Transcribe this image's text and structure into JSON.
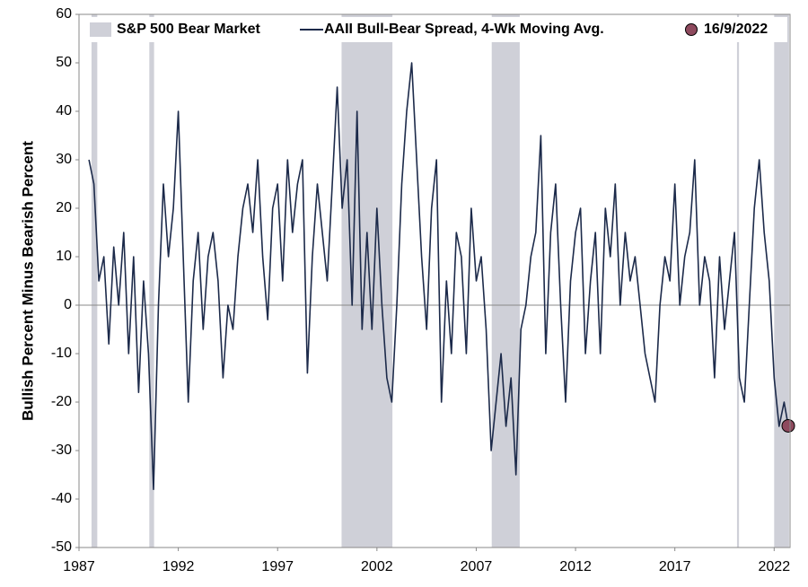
{
  "chart_data": {
    "type": "line",
    "ylabel": "Bullish Percent Minus Bearish Percent",
    "xlim": [
      1987,
      2022.8
    ],
    "xticks": [
      1987,
      1992,
      1997,
      2002,
      2007,
      2012,
      2017,
      2022
    ],
    "ylim": [
      -50,
      60
    ],
    "yticks": [
      -50,
      -40,
      -30,
      -20,
      -10,
      0,
      10,
      20,
      30,
      40,
      50,
      60
    ],
    "zero_line": true,
    "x": [
      1987.5,
      1987.75,
      1988,
      1988.25,
      1988.5,
      1988.75,
      1989,
      1989.25,
      1989.5,
      1989.75,
      1990,
      1990.25,
      1990.5,
      1990.75,
      1991,
      1991.25,
      1991.5,
      1991.75,
      1992,
      1992.25,
      1992.5,
      1992.75,
      1993,
      1993.25,
      1993.5,
      1993.75,
      1994,
      1994.25,
      1994.5,
      1994.75,
      1995,
      1995.25,
      1995.5,
      1995.75,
      1996,
      1996.25,
      1996.5,
      1996.75,
      1997,
      1997.25,
      1997.5,
      1997.75,
      1998,
      1998.25,
      1998.5,
      1998.75,
      1999,
      1999.25,
      1999.5,
      1999.75,
      2000,
      2000.25,
      2000.5,
      2000.75,
      2001,
      2001.25,
      2001.5,
      2001.75,
      2002,
      2002.25,
      2002.5,
      2002.75,
      2003,
      2003.25,
      2003.5,
      2003.75,
      2004,
      2004.25,
      2004.5,
      2004.75,
      2005,
      2005.25,
      2005.5,
      2005.75,
      2006,
      2006.25,
      2006.5,
      2006.75,
      2007,
      2007.25,
      2007.5,
      2007.75,
      2008,
      2008.25,
      2008.5,
      2008.75,
      2009,
      2009.25,
      2009.5,
      2009.75,
      2010,
      2010.25,
      2010.5,
      2010.75,
      2011,
      2011.25,
      2011.5,
      2011.75,
      2012,
      2012.25,
      2012.5,
      2012.75,
      2013,
      2013.25,
      2013.5,
      2013.75,
      2014,
      2014.25,
      2014.5,
      2014.75,
      2015,
      2015.25,
      2015.5,
      2015.75,
      2016,
      2016.25,
      2016.5,
      2016.75,
      2017,
      2017.25,
      2017.5,
      2017.75,
      2018,
      2018.25,
      2018.5,
      2018.75,
      2019,
      2019.25,
      2019.5,
      2019.75,
      2020,
      2020.25,
      2020.5,
      2020.75,
      2021,
      2021.25,
      2021.5,
      2021.75,
      2022,
      2022.25,
      2022.5,
      2022.71
    ],
    "series": [
      {
        "name": "AAII Bull-Bear Spread, 4-Wk Moving Avg.",
        "color": "#1c2a4a",
        "values": [
          30,
          25,
          5,
          10,
          -8,
          12,
          0,
          15,
          -10,
          10,
          -18,
          5,
          -10,
          -38,
          0,
          25,
          10,
          20,
          40,
          10,
          -20,
          5,
          15,
          -5,
          10,
          15,
          5,
          -15,
          0,
          -5,
          10,
          20,
          25,
          15,
          30,
          10,
          -3,
          20,
          25,
          5,
          30,
          15,
          25,
          30,
          -14,
          10,
          25,
          15,
          5,
          25,
          45,
          20,
          30,
          0,
          40,
          -5,
          15,
          -5,
          20,
          0,
          -15,
          -20,
          0,
          25,
          40,
          50,
          30,
          10,
          -5,
          20,
          30,
          -20,
          5,
          -10,
          15,
          10,
          -10,
          20,
          5,
          10,
          -5,
          -30,
          -20,
          -10,
          -25,
          -15,
          -35,
          -5,
          0,
          10,
          15,
          35,
          -10,
          15,
          25,
          0,
          -20,
          5,
          15,
          20,
          -10,
          5,
          15,
          -10,
          20,
          10,
          25,
          0,
          15,
          5,
          10,
          0,
          -10,
          -15,
          -20,
          0,
          10,
          5,
          25,
          0,
          10,
          15,
          30,
          0,
          10,
          5,
          -15,
          10,
          -5,
          5,
          15,
          -15,
          -20,
          0,
          20,
          30,
          15,
          5,
          -15,
          -25,
          -20,
          -24.9
        ]
      }
    ],
    "bear_markets": {
      "name": "S&P 500 Bear Market",
      "color": "#cfd0d8",
      "periods": [
        [
          1987.63,
          1987.92
        ],
        [
          1990.54,
          1990.78
        ],
        [
          2000.22,
          2002.78
        ],
        [
          2007.78,
          2009.19
        ],
        [
          2020.13,
          2020.23
        ],
        [
          2022.0,
          2022.75
        ]
      ]
    },
    "highlight": {
      "name": "16/9/2022",
      "x": 2022.71,
      "y": -24.9,
      "color": "#8e4a5e"
    }
  }
}
